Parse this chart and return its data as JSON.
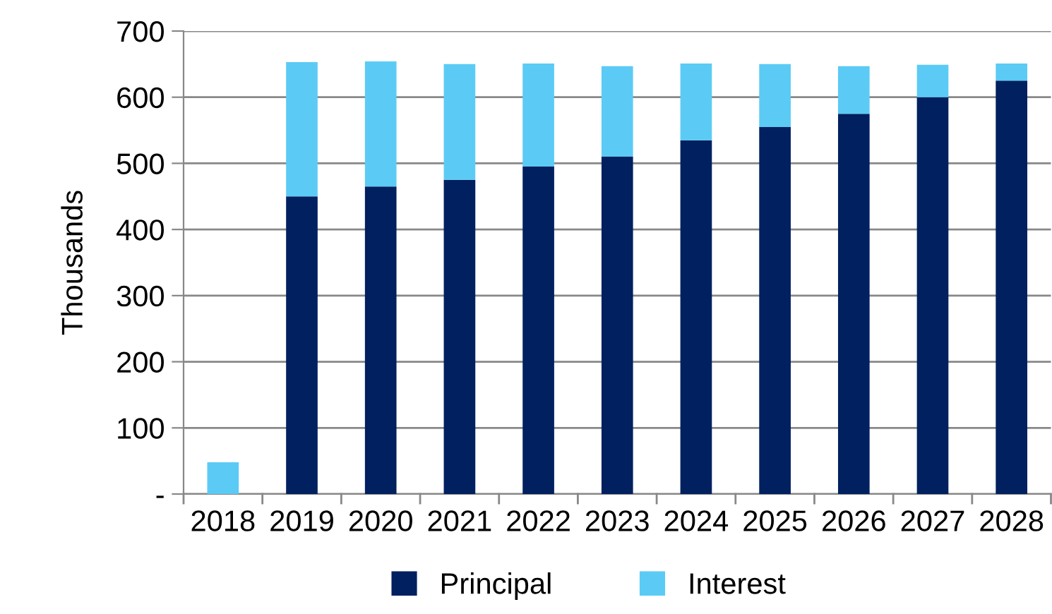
{
  "chart_data": {
    "type": "bar",
    "stacked": true,
    "ylabel": "Thousands",
    "categories": [
      "2018",
      "2019",
      "2020",
      "2021",
      "2022",
      "2023",
      "2024",
      "2025",
      "2026",
      "2027",
      "2028"
    ],
    "series": [
      {
        "name": "Principal",
        "color": "#002060",
        "values": [
          0,
          450,
          465,
          475,
          495,
          510,
          535,
          555,
          575,
          600,
          625
        ]
      },
      {
        "name": "Interest",
        "color": "#5bcbf5",
        "values": [
          48,
          203,
          189,
          175,
          156,
          137,
          116,
          95,
          72,
          49,
          26
        ]
      }
    ],
    "ylim": [
      0,
      700
    ],
    "yticks": [
      {
        "value": 0,
        "label": "-"
      },
      100,
      200,
      300,
      400,
      500,
      600,
      700
    ],
    "grid": "y",
    "legend": "bottom"
  }
}
